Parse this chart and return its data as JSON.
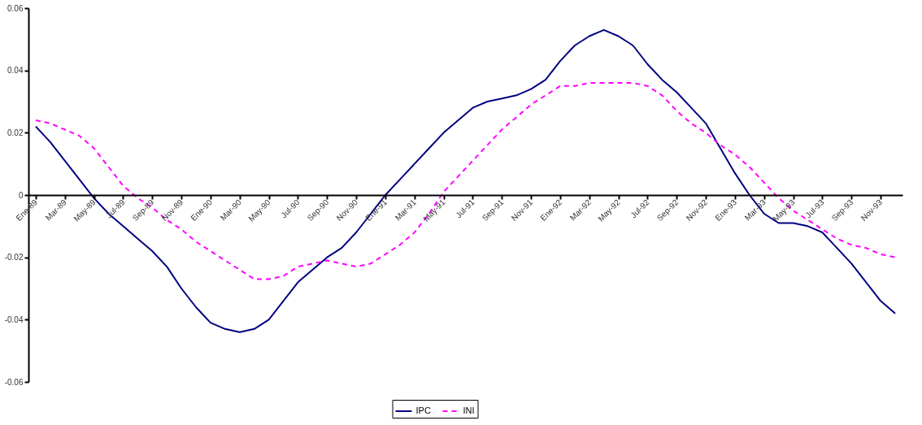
{
  "chart_data": {
    "type": "line",
    "categories": [
      "Ene-89",
      null,
      "Mar-89",
      null,
      "May-89",
      null,
      "Jul-89",
      null,
      "Sep-89",
      null,
      "Nov-89",
      null,
      "Ene-90",
      null,
      "Mar-90",
      null,
      "May-90",
      null,
      "Jul-90",
      null,
      "Sep-90",
      null,
      "Nov-90",
      null,
      "Ene-91",
      null,
      "Mar-91",
      null,
      "May-91",
      null,
      "Jul-91",
      null,
      "Sep-91",
      null,
      "Nov-91",
      null,
      "Ene-92",
      null,
      "Mar-92",
      null,
      "May-92",
      null,
      "Jul-92",
      null,
      "Sep-92",
      null,
      "Nov-92",
      null,
      "Ene-93",
      null,
      "Mar-93",
      null,
      "May-93",
      null,
      "Jul-93",
      null,
      "Sep-93",
      null,
      "Nov-93",
      null
    ],
    "series": [
      {
        "name": "IPC",
        "color": "#000080",
        "line_style": "solid",
        "values": [
          0.022,
          0.017,
          0.011,
          0.005,
          -0.001,
          -0.006,
          -0.01,
          -0.014,
          -0.018,
          -0.023,
          -0.03,
          -0.036,
          -0.041,
          -0.043,
          -0.044,
          -0.043,
          -0.04,
          -0.034,
          -0.028,
          -0.024,
          -0.02,
          -0.017,
          -0.012,
          -0.006,
          0.0,
          0.005,
          0.01,
          0.015,
          0.02,
          0.024,
          0.028,
          0.03,
          0.031,
          0.032,
          0.034,
          0.037,
          0.043,
          0.048,
          0.051,
          0.053,
          0.051,
          0.048,
          0.042,
          0.037,
          0.033,
          0.028,
          0.023,
          0.015,
          0.007,
          0.0,
          -0.006,
          -0.009,
          -0.009,
          -0.01,
          -0.012,
          -0.017,
          -0.022,
          -0.028,
          -0.034,
          -0.038
        ]
      },
      {
        "name": "INI",
        "color": "#ff00ff",
        "line_style": "dashed",
        "values": [
          0.024,
          0.023,
          0.021,
          0.019,
          0.015,
          0.009,
          0.003,
          -0.001,
          -0.004,
          -0.008,
          -0.011,
          -0.015,
          -0.018,
          -0.021,
          -0.024,
          -0.027,
          -0.027,
          -0.026,
          -0.023,
          -0.022,
          -0.021,
          -0.022,
          -0.023,
          -0.022,
          -0.019,
          -0.016,
          -0.012,
          -0.006,
          0.001,
          0.006,
          0.011,
          0.016,
          0.021,
          0.025,
          0.029,
          0.032,
          0.035,
          0.035,
          0.036,
          0.036,
          0.036,
          0.036,
          0.035,
          0.032,
          0.027,
          0.023,
          0.02,
          0.016,
          0.013,
          0.009,
          0.004,
          -0.001,
          -0.005,
          -0.008,
          -0.011,
          -0.014,
          -0.016,
          -0.017,
          -0.019,
          -0.02
        ]
      }
    ],
    "ylim": [
      -0.06,
      0.06
    ],
    "yticks": [
      -0.06,
      -0.04,
      -0.02,
      0,
      0.02,
      0.04,
      0.06
    ],
    "grid": false,
    "legend": "bottom",
    "marker": "none"
  }
}
